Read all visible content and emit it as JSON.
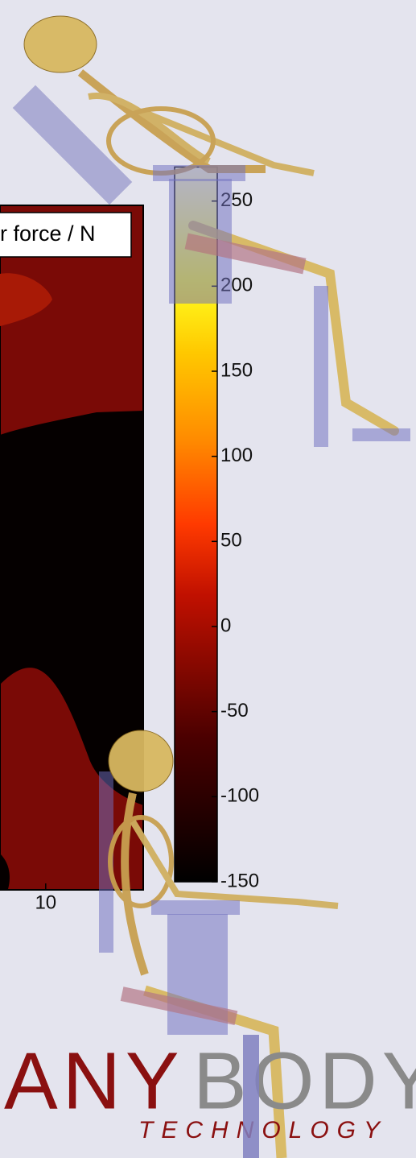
{
  "chart_data": {
    "type": "contour",
    "legend_label": "r force / N",
    "xlim": [
      7,
      12
    ],
    "xticks": [
      10
    ],
    "zlim": [
      -150,
      270
    ],
    "zticks": [
      -150,
      -100,
      -50,
      0,
      50,
      100,
      150,
      200,
      250
    ]
  },
  "logo": {
    "brand_part1": "ANY",
    "brand_part2": "BODY",
    "tagline": "TECHNOLOGY"
  }
}
